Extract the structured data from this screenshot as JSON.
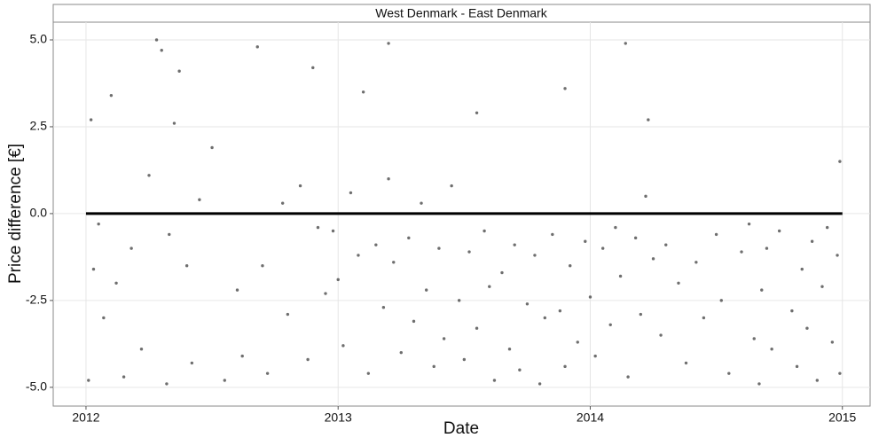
{
  "chart_data": {
    "type": "scatter",
    "strip_title": "West Denmark - East Denmark",
    "xlabel": "Date",
    "ylabel": "Price difference [€]",
    "xlim": [
      2011.87,
      2015.11
    ],
    "xticks": [
      2012,
      2013,
      2014,
      2015
    ],
    "ylim": [
      -5.54,
      5.51
    ],
    "yticks": [
      {
        "value": -5,
        "label": "-5.0"
      },
      {
        "value": -2.5,
        "label": "-2.5"
      },
      {
        "value": 0,
        "label": "0.0"
      },
      {
        "value": 2.5,
        "label": "2.5"
      },
      {
        "value": 5,
        "label": "5.0"
      }
    ],
    "grid": true,
    "hline": 0,
    "series": [
      {
        "color": "#4a4a4a",
        "x": [
          2012.01,
          2012.02,
          2012.03,
          2012.05,
          2012.07,
          2012.1,
          2012.12,
          2012.15,
          2012.18,
          2012.22,
          2012.25,
          2012.3,
          2012.32,
          2012.33,
          2012.35,
          2012.37,
          2012.4,
          2012.42,
          2012.45,
          2012.5,
          2012.55,
          2012.6,
          2012.62,
          2012.7,
          2012.72,
          2012.78,
          2012.8,
          2012.85,
          2012.88,
          2012.92,
          2012.95,
          2012.98,
          2013.0,
          2013.02,
          2013.05,
          2013.08,
          2013.1,
          2013.12,
          2013.15,
          2013.18,
          2013.2,
          2013.22,
          2013.25,
          2013.28,
          2013.3,
          2013.33,
          2013.35,
          2013.38,
          2013.4,
          2013.42,
          2013.45,
          2013.48,
          2013.5,
          2013.52,
          2013.55,
          2013.58,
          2013.6,
          2013.62,
          2013.65,
          2013.68,
          2013.7,
          2013.72,
          2013.75,
          2013.78,
          2013.8,
          2013.82,
          2013.85,
          2013.88,
          2013.9,
          2013.92,
          2013.95,
          2013.98,
          2014.0,
          2014.02,
          2014.05,
          2014.08,
          2014.1,
          2014.12,
          2014.15,
          2014.18,
          2014.2,
          2014.22,
          2014.25,
          2014.28,
          2014.3,
          2014.35,
          2014.38,
          2014.42,
          2014.45,
          2014.5,
          2014.52,
          2014.55,
          2014.6,
          2014.63,
          2014.65,
          2014.67,
          2014.68,
          2014.7,
          2014.72,
          2014.75,
          2014.8,
          2014.82,
          2014.84,
          2014.86,
          2014.88,
          2014.9,
          2014.92,
          2014.94,
          2014.96,
          2014.98,
          2014.99,
          2014.99,
          2012.28,
          2012.68,
          2013.2,
          2013.9,
          2014.14,
          2012.9,
          2014.23,
          2013.55
        ],
        "values": [
          -4.8,
          2.7,
          -1.6,
          -0.3,
          -3.0,
          3.4,
          -2.0,
          -4.7,
          -1.0,
          -3.9,
          1.1,
          4.7,
          -4.9,
          -0.6,
          2.6,
          4.1,
          -1.5,
          -4.3,
          0.4,
          1.9,
          -4.8,
          -2.2,
          -4.1,
          -1.5,
          -4.6,
          0.3,
          -2.9,
          0.8,
          -4.2,
          -0.4,
          -2.3,
          -0.5,
          -1.9,
          -3.8,
          0.6,
          -1.2,
          3.5,
          -4.6,
          -0.9,
          -2.7,
          1.0,
          -1.4,
          -4.0,
          -0.7,
          -3.1,
          0.3,
          -2.2,
          -4.4,
          -1.0,
          -3.6,
          0.8,
          -2.5,
          -4.2,
          -1.1,
          -3.3,
          -0.5,
          -2.1,
          -4.8,
          -1.7,
          -3.9,
          -0.9,
          -4.5,
          -2.6,
          -1.2,
          -4.9,
          -3.0,
          -0.6,
          -2.8,
          -4.4,
          -1.5,
          -3.7,
          -0.8,
          -2.4,
          -4.1,
          -1.0,
          -3.2,
          -0.4,
          -1.8,
          -4.7,
          -0.7,
          -2.9,
          0.5,
          -1.3,
          -3.5,
          -0.9,
          -2.0,
          -4.3,
          -1.4,
          -3.0,
          -0.6,
          -2.5,
          -4.6,
          -1.1,
          -0.3,
          -3.6,
          -4.9,
          -2.2,
          -1.0,
          -3.9,
          -0.5,
          -2.8,
          -4.4,
          -1.6,
          -3.3,
          -0.8,
          -4.8,
          -2.1,
          -0.4,
          -3.7,
          -1.2,
          -4.6,
          1.5,
          5.0,
          4.8,
          4.9,
          3.6,
          4.9,
          4.2,
          2.7,
          2.9
        ]
      }
    ]
  }
}
